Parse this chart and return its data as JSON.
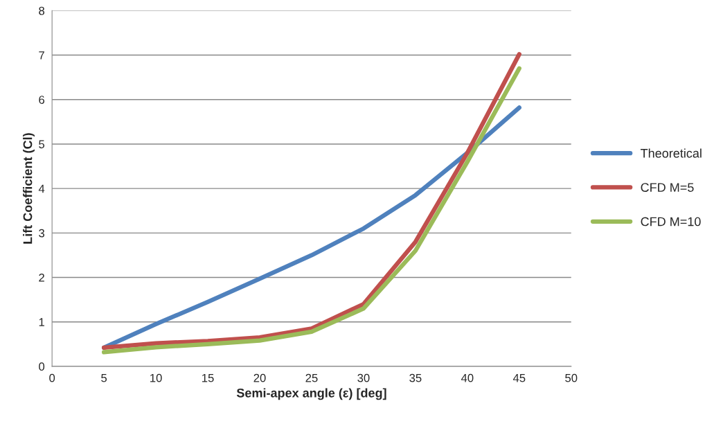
{
  "chart_data": {
    "type": "line",
    "xlabel": "Semi-apex angle (ε) [deg]",
    "ylabel": "Lift Coefficient (Cl)",
    "x": [
      5,
      10,
      15,
      20,
      25,
      30,
      35,
      40,
      45
    ],
    "series": [
      {
        "name": "Theoretical",
        "color": "#4f81bd",
        "values": [
          0.42,
          0.95,
          1.45,
          1.97,
          2.5,
          3.1,
          3.85,
          4.8,
          5.82
        ]
      },
      {
        "name": "CFD M=5",
        "color": "#c0504d",
        "values": [
          0.42,
          0.52,
          0.57,
          0.65,
          0.85,
          1.4,
          2.8,
          4.8,
          7.02
        ]
      },
      {
        "name": "CFD M=10",
        "color": "#9bbb59",
        "values": [
          0.32,
          0.43,
          0.5,
          0.58,
          0.78,
          1.3,
          2.6,
          4.6,
          6.7
        ]
      }
    ],
    "xlim": [
      0,
      50
    ],
    "xticks": [
      0,
      5,
      10,
      15,
      20,
      25,
      30,
      35,
      40,
      45,
      50
    ],
    "ylim": [
      0,
      8
    ],
    "yticks": [
      0,
      1,
      2,
      3,
      4,
      5,
      6,
      7,
      8
    ],
    "grid": "y",
    "legend": "right",
    "marker": "none",
    "line_style": "solid"
  }
}
